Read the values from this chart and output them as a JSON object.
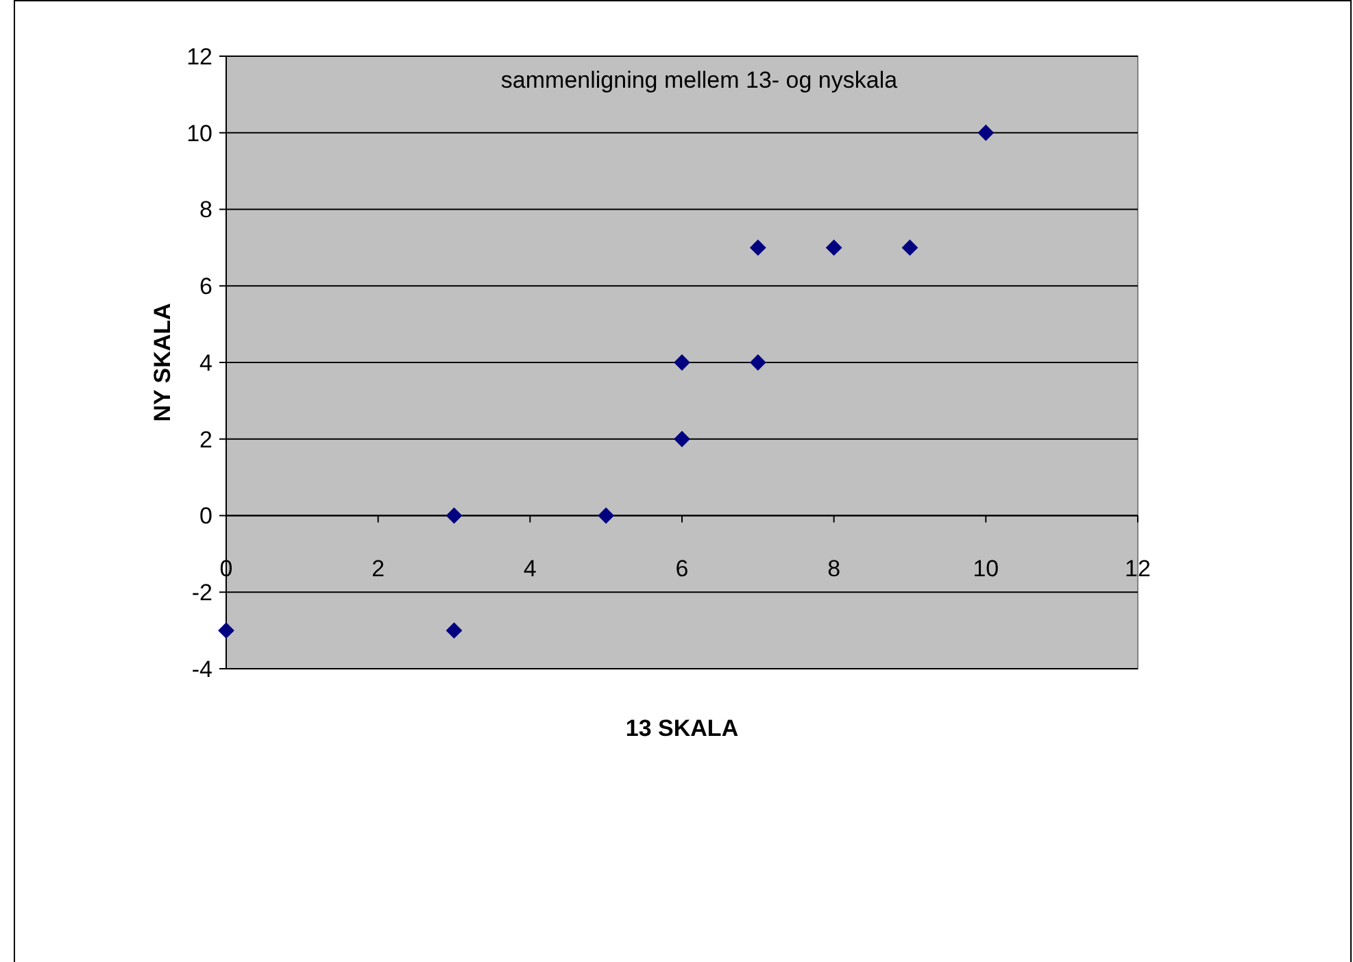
{
  "chart_data": {
    "type": "scatter",
    "title": "sammenligning mellem 13- og nyskala",
    "xlabel": "13 SKALA",
    "ylabel": "NY SKALA",
    "x": [
      0,
      3,
      3,
      5,
      6,
      6,
      7,
      7,
      8,
      9,
      10
    ],
    "series": [
      {
        "color": "#000080",
        "values": [
          -3,
          0,
          -3,
          0,
          4,
          2,
          7,
          4,
          7,
          7,
          10
        ]
      }
    ],
    "xlim": [
      0,
      12
    ],
    "xticks": [
      0,
      2,
      4,
      6,
      8,
      10,
      12
    ],
    "ylim": [
      -4,
      12
    ],
    "yticks": [
      -4,
      -2,
      0,
      2,
      4,
      6,
      8,
      10,
      12
    ],
    "grid": "y",
    "marker": "diamond"
  }
}
